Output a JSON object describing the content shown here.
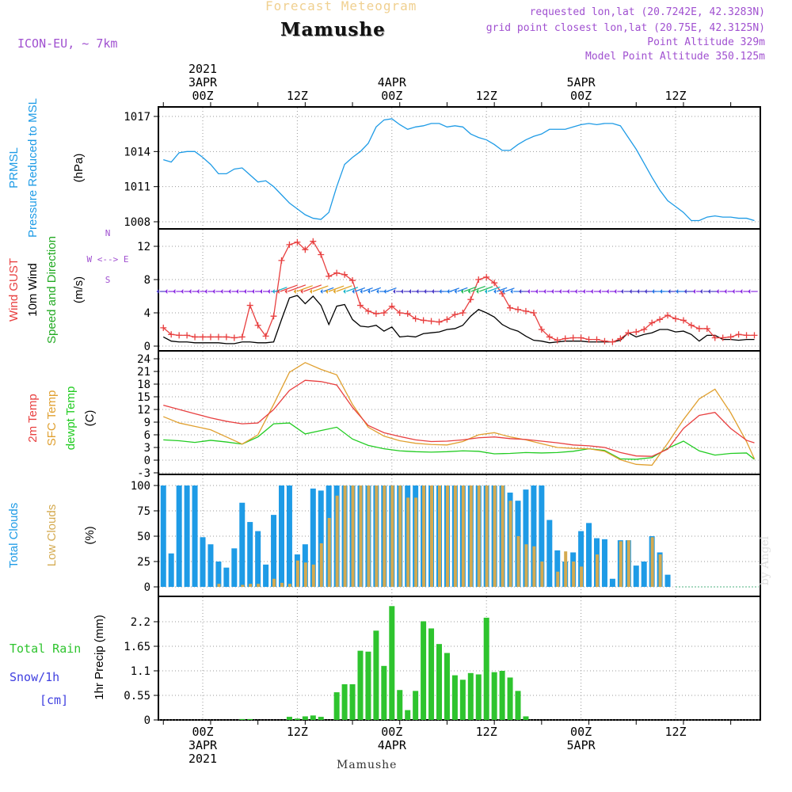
{
  "header": {
    "product": "Forecast Meteogram",
    "location": "Mamushe",
    "model": "ICON-EU, ~ 7km",
    "requested": "requested lon,lat (20.7242E, 42.3283N)",
    "gridpoint": "grid point closest lon,lat (20.75E, 42.3125N)",
    "point_alt": "Point Altitude 329m",
    "model_alt": "Model Point Altitude 350.125m"
  },
  "footer": {
    "location": "Mamushe",
    "watermark": "by Angel"
  },
  "colors": {
    "pressure": "#1E9BE6",
    "gust": "#E84040",
    "wind": "#000000",
    "winddir": "#22AA22",
    "t2m": "#E84040",
    "tsfc": "#E0A030",
    "dew": "#22CC22",
    "total_cloud": "#1E9BE6",
    "low_cloud": "#D4AA50",
    "precip": "#2EC42E",
    "snow": "#4040E0",
    "compass": "#A050D0",
    "header_purple": "#A050D0",
    "title_gold": "#F0D090"
  },
  "time_axis": {
    "top_labels": [
      {
        "hour": 0,
        "lines": [
          "2021",
          "3APR",
          "00Z"
        ]
      },
      {
        "hour": 12,
        "lines": [
          "12Z"
        ]
      },
      {
        "hour": 24,
        "lines": [
          "4APR",
          "00Z"
        ]
      },
      {
        "hour": 36,
        "lines": [
          "12Z"
        ]
      },
      {
        "hour": 48,
        "lines": [
          "5APR",
          "00Z"
        ]
      },
      {
        "hour": 60,
        "lines": [
          "12Z"
        ]
      }
    ],
    "bottom_labels": [
      {
        "hour": 0,
        "lines": [
          "00Z",
          "3APR",
          "2021"
        ]
      },
      {
        "hour": 12,
        "lines": [
          "12Z"
        ]
      },
      {
        "hour": 24,
        "lines": [
          "00Z",
          "4APR"
        ]
      },
      {
        "hour": 36,
        "lines": [
          "12Z"
        ]
      },
      {
        "hour": 48,
        "lines": [
          "00Z",
          "5APR"
        ]
      },
      {
        "hour": 60,
        "lines": [
          "12Z"
        ]
      }
    ]
  },
  "chart_data": [
    {
      "type": "line",
      "panel": "pressure",
      "ylabels": [
        "PRMSL",
        "Pressure Reduced to MSL",
        "(hPa)"
      ],
      "yticks": [
        "1008",
        "1011",
        "1014",
        "1017"
      ],
      "ylim": [
        1007.3,
        1017.6
      ],
      "x": [
        -5,
        -4,
        -3,
        -2,
        -1,
        0,
        1,
        2,
        3,
        4,
        5,
        6,
        7,
        8,
        9,
        10,
        11,
        12,
        13,
        14,
        15,
        16,
        17,
        18,
        19,
        20,
        21,
        22,
        23,
        24,
        25,
        26,
        27,
        28,
        29,
        30,
        31,
        32,
        33,
        34,
        35,
        36,
        37,
        38,
        39,
        40,
        41,
        42,
        43,
        44,
        45,
        46,
        47,
        48,
        49,
        50,
        51,
        52,
        53,
        54,
        55,
        56,
        57,
        58,
        59,
        60,
        61,
        62,
        63,
        64,
        65,
        66,
        67,
        68,
        69,
        70
      ],
      "series": [
        {
          "name": "PRMSL",
          "values": [
            1013.3,
            1013.1,
            1013.9,
            1014.0,
            1014.0,
            1013.5,
            1012.9,
            1012.1,
            1012.1,
            1012.5,
            1012.6,
            1012.0,
            1011.4,
            1011.5,
            1011.0,
            1010.3,
            1009.6,
            1009.1,
            1008.6,
            1008.3,
            1008.2,
            1008.8,
            1011.0,
            1012.9,
            1013.5,
            1014.0,
            1014.7,
            1016.1,
            1016.7,
            1016.8,
            1016.3,
            1015.9,
            1016.1,
            1016.2,
            1016.4,
            1016.4,
            1016.1,
            1016.2,
            1016.1,
            1015.5,
            1015.2,
            1015.0,
            1014.6,
            1014.1,
            1014.1,
            1014.6,
            1015.0,
            1015.3,
            1015.5,
            1015.9,
            1015.9,
            1015.9,
            1016.1,
            1016.3,
            1016.4,
            1016.3,
            1016.4,
            1016.4,
            1016.2,
            1015.2,
            1014.2,
            1013.0,
            1011.8,
            1010.7,
            1009.8,
            1009.3,
            1008.8,
            1008.1,
            1008.1,
            1008.4,
            1008.5,
            1008.4,
            1008.4,
            1008.3,
            1008.3,
            1008.1
          ]
        }
      ]
    },
    {
      "type": "line",
      "panel": "wind",
      "ylabels": [
        "Wind GUST",
        "10m Wind",
        "Speed and Direction",
        "(m/s)"
      ],
      "compass": [
        "N",
        "W <--> E",
        "S"
      ],
      "yticks": [
        "0",
        "4",
        "8",
        "12"
      ],
      "ylim": [
        -0.6,
        13.8
      ],
      "x": [
        -5,
        -4,
        -3,
        -2,
        -1,
        0,
        1,
        2,
        3,
        4,
        5,
        6,
        7,
        8,
        9,
        10,
        11,
        12,
        13,
        14,
        15,
        16,
        17,
        18,
        19,
        20,
        21,
        22,
        23,
        24,
        25,
        26,
        27,
        28,
        29,
        30,
        31,
        32,
        33,
        34,
        35,
        36,
        37,
        38,
        39,
        40,
        41,
        42,
        43,
        44,
        45,
        46,
        47,
        48,
        49,
        50,
        51,
        52,
        53,
        54,
        55,
        56,
        57,
        58,
        59,
        60,
        61,
        62,
        63,
        64,
        65,
        66,
        67,
        68,
        69,
        70
      ],
      "series": [
        {
          "name": "Wind GUST",
          "values": [
            2.2,
            1.4,
            1.3,
            1.3,
            1.1,
            1.1,
            1.1,
            1.1,
            1.1,
            1.0,
            1.1,
            4.9,
            2.5,
            1.2,
            3.6,
            10.3,
            12.2,
            12.5,
            11.6,
            12.6,
            11.0,
            8.4,
            8.8,
            8.6,
            7.9,
            4.9,
            4.2,
            3.9,
            4.0,
            4.8,
            4.0,
            3.9,
            3.3,
            3.1,
            3.0,
            2.9,
            3.2,
            3.8,
            4.0,
            5.6,
            8.0,
            8.3,
            7.6,
            6.3,
            4.6,
            4.4,
            4.2,
            4.0,
            2.0,
            1.1,
            0.7,
            0.9,
            1.0,
            1.0,
            0.8,
            0.8,
            0.6,
            0.5,
            0.9,
            1.6,
            1.7,
            2.0,
            2.8,
            3.2,
            3.7,
            3.3,
            3.1,
            2.5,
            2.1,
            2.1,
            1.0,
            1.0,
            1.1,
            1.4,
            1.3,
            1.3
          ]
        },
        {
          "name": "10m Wind",
          "values": [
            1.1,
            0.6,
            0.5,
            0.5,
            0.4,
            0.4,
            0.4,
            0.4,
            0.3,
            0.3,
            0.5,
            0.5,
            0.4,
            0.4,
            0.5,
            3.2,
            5.8,
            6.1,
            5.1,
            6.0,
            4.9,
            2.6,
            4.8,
            5.0,
            3.2,
            2.4,
            2.3,
            2.5,
            1.8,
            2.3,
            1.1,
            1.2,
            1.1,
            1.5,
            1.6,
            1.7,
            2.0,
            2.1,
            2.5,
            3.6,
            4.4,
            4.0,
            3.5,
            2.6,
            2.1,
            1.8,
            1.2,
            0.7,
            0.6,
            0.4,
            0.5,
            0.6,
            0.6,
            0.6,
            0.5,
            0.5,
            0.5,
            0.5,
            0.7,
            1.6,
            1.1,
            1.4,
            1.6,
            2.0,
            2.0,
            1.7,
            1.8,
            1.4,
            0.6,
            1.3,
            1.3,
            0.8,
            0.8,
            0.7,
            0.8,
            0.8
          ]
        }
      ],
      "wind_direction_shown": true
    },
    {
      "type": "line",
      "panel": "temperature",
      "ylabels": [
        "2m Temp",
        "SFC Temp",
        "dewpt Temp",
        "(C)"
      ],
      "yticks": [
        "-3",
        "0",
        "3",
        "6",
        "9",
        "12",
        "15",
        "18",
        "21",
        "24"
      ],
      "ylim": [
        -3,
        24.5
      ],
      "x": [
        -5,
        -3,
        -1,
        1,
        3,
        5,
        7,
        9,
        11,
        13,
        15,
        17,
        19,
        21,
        23,
        25,
        27,
        29,
        31,
        33,
        35,
        37,
        39,
        41,
        43,
        45,
        47,
        49,
        51,
        53,
        55,
        57,
        59,
        61,
        63,
        65,
        67,
        69,
        70
      ],
      "series": [
        {
          "name": "2m Temp",
          "values": [
            13,
            12,
            11,
            10,
            9.2,
            8.6,
            8.8,
            12,
            16.5,
            18.9,
            18.6,
            17.8,
            12.5,
            8.2,
            6.5,
            5.6,
            4.8,
            4.4,
            4.5,
            4.8,
            5.3,
            5.5,
            5.1,
            4.9,
            4.5,
            4.1,
            3.6,
            3.4,
            3.0,
            1.8,
            1.0,
            0.9,
            2.6,
            7.5,
            10.6,
            11.3,
            7.5,
            4.7,
            4.1
          ]
        },
        {
          "name": "SFC Temp",
          "values": [
            10.3,
            8.8,
            8.0,
            7.2,
            5.5,
            3.8,
            6.0,
            13.2,
            20.8,
            23.1,
            21.5,
            20.2,
            13.2,
            7.8,
            5.7,
            4.6,
            4.0,
            3.7,
            3.6,
            4.4,
            6.0,
            6.5,
            5.5,
            4.8,
            3.9,
            3.0,
            2.8,
            2.7,
            2.1,
            0.1,
            -1.0,
            -1.2,
            4.0,
            9.6,
            14.5,
            16.8,
            11.2,
            4.4,
            0.3
          ]
        },
        {
          "name": "dewpt Temp",
          "values": [
            4.8,
            4.6,
            4.2,
            4.7,
            4.3,
            3.8,
            5.5,
            8.6,
            8.8,
            6.2,
            7.0,
            7.8,
            5.0,
            3.5,
            2.7,
            2.2,
            2.0,
            1.9,
            2.0,
            2.2,
            2.1,
            1.5,
            1.6,
            1.8,
            1.7,
            1.8,
            2.1,
            2.7,
            2.3,
            0.3,
            0.2,
            0.6,
            2.8,
            4.5,
            2.2,
            1.2,
            1.6,
            1.7,
            0.2
          ]
        }
      ]
    },
    {
      "type": "bar",
      "panel": "clouds",
      "ylabels": [
        "Total Clouds",
        "Low Clouds",
        "(%)"
      ],
      "yticks": [
        "0",
        "25",
        "50",
        "75",
        "100"
      ],
      "ylim": [
        -5,
        104
      ],
      "x": [
        -5,
        -4,
        -3,
        -2,
        -1,
        0,
        1,
        2,
        3,
        4,
        5,
        6,
        7,
        8,
        9,
        10,
        11,
        12,
        13,
        14,
        15,
        16,
        17,
        18,
        19,
        20,
        21,
        22,
        23,
        24,
        25,
        26,
        27,
        28,
        29,
        30,
        31,
        32,
        33,
        34,
        35,
        36,
        37,
        38,
        39,
        40,
        41,
        42,
        43,
        44,
        45,
        46,
        47,
        48,
        49,
        50,
        51,
        52,
        53,
        54,
        55,
        56,
        57,
        58,
        59,
        60,
        61,
        62,
        63,
        64,
        65,
        66,
        67,
        68,
        69,
        70
      ],
      "series": [
        {
          "name": "Total Clouds",
          "values": [
            100,
            33,
            100,
            100,
            100,
            49,
            42,
            25,
            19,
            38,
            83,
            64,
            55,
            22,
            71,
            100,
            100,
            32,
            42,
            97,
            95,
            100,
            100,
            100,
            100,
            100,
            100,
            100,
            100,
            100,
            100,
            100,
            100,
            100,
            100,
            100,
            100,
            100,
            100,
            100,
            100,
            100,
            100,
            100,
            93,
            85,
            96,
            100,
            100,
            66,
            36,
            25,
            34,
            55,
            63,
            48,
            47,
            8,
            46,
            46,
            21,
            25,
            50,
            34,
            12,
            0,
            0,
            0,
            0,
            0,
            0,
            0,
            0,
            0,
            0,
            0
          ]
        },
        {
          "name": "Low Clouds",
          "values": [
            0,
            0,
            0,
            0,
            0,
            0,
            0,
            3,
            0,
            0,
            2,
            3,
            3,
            0,
            8,
            4,
            3,
            26,
            24,
            22,
            43,
            68,
            90,
            100,
            100,
            100,
            100,
            100,
            100,
            100,
            100,
            88,
            88,
            100,
            100,
            100,
            100,
            100,
            100,
            100,
            100,
            100,
            100,
            100,
            85,
            50,
            42,
            40,
            25,
            0,
            15,
            35,
            25,
            20,
            0,
            32,
            0,
            0,
            45,
            46,
            0,
            0,
            49,
            32,
            0,
            0,
            0,
            0,
            0,
            0,
            0,
            0,
            0,
            0,
            0,
            0
          ]
        }
      ]
    },
    {
      "type": "bar",
      "panel": "precip",
      "ylabels": [
        "1hr Precip (mm)"
      ],
      "left_labels": [
        "Total Rain",
        "Snow/1h",
        "[cm]"
      ],
      "yticks": [
        "0",
        "0.55",
        "1.1",
        "1.65",
        "2.2"
      ],
      "ylim": [
        0,
        2.6
      ],
      "x": [
        -5,
        -4,
        -3,
        -2,
        -1,
        0,
        1,
        2,
        3,
        4,
        5,
        6,
        7,
        8,
        9,
        10,
        11,
        12,
        13,
        14,
        15,
        16,
        17,
        18,
        19,
        20,
        21,
        22,
        23,
        24,
        25,
        26,
        27,
        28,
        29,
        30,
        31,
        32,
        33,
        34,
        35,
        36,
        37,
        38,
        39,
        40,
        41,
        42,
        43,
        44,
        45,
        46,
        47,
        48,
        49,
        50,
        51,
        52,
        53,
        54,
        55,
        56,
        57,
        58,
        59,
        60,
        61,
        62,
        63,
        64,
        65,
        66,
        67,
        68,
        69,
        70
      ],
      "series": [
        {
          "name": "Total Rain",
          "values": [
            0,
            0,
            0,
            0,
            0,
            0,
            0,
            0,
            0,
            0,
            0.02,
            0.02,
            0,
            0,
            0,
            0,
            0.07,
            0.03,
            0.08,
            0.1,
            0.07,
            0,
            0.62,
            0.8,
            0.8,
            1.55,
            1.53,
            2.0,
            1.21,
            2.55,
            0.67,
            0.22,
            0.65,
            2.21,
            2.05,
            1.7,
            1.5,
            1.0,
            0.9,
            1.05,
            1.02,
            2.29,
            1.07,
            1.1,
            0.95,
            0.65,
            0.08,
            0,
            0,
            0,
            0,
            0,
            0,
            0,
            0,
            0,
            0,
            0,
            0,
            0,
            0,
            0,
            0,
            0,
            0,
            0,
            0,
            0,
            0,
            0,
            0,
            0,
            0,
            0,
            0,
            0
          ]
        }
      ]
    }
  ]
}
